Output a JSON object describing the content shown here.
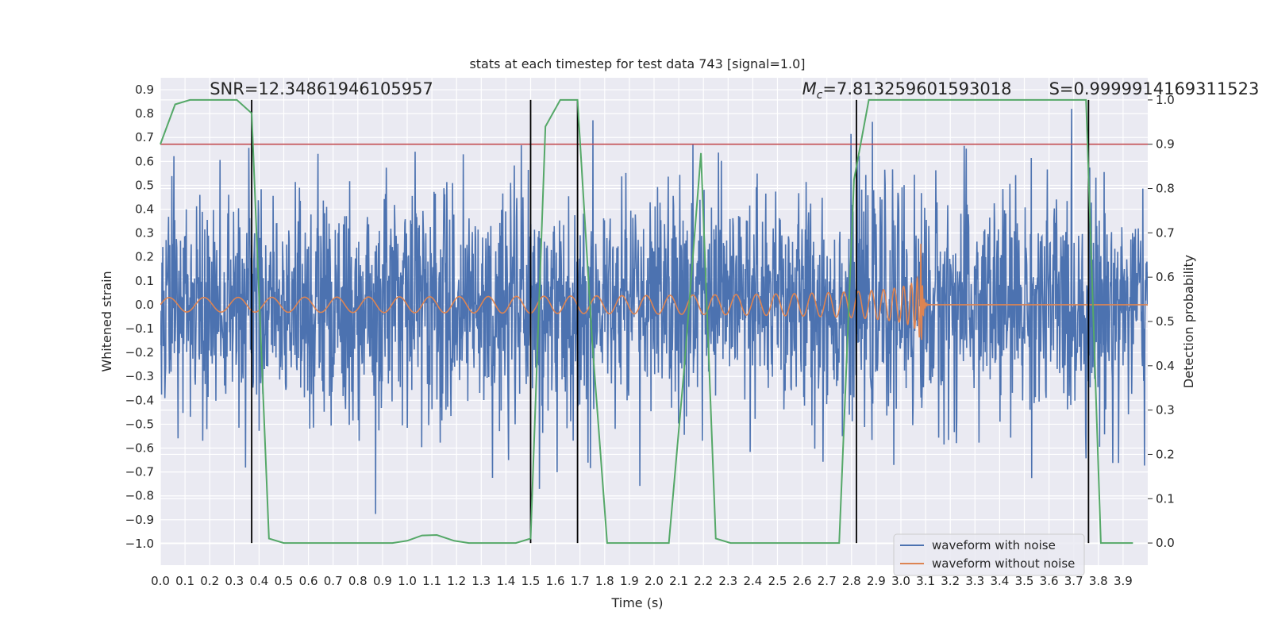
{
  "chart_data": {
    "type": "line",
    "title": "stats at each timestep for test data 743 [signal=1.0]",
    "xlabel": "Time (s)",
    "ylabel": "Whitened strain",
    "y2label": "Detection probability",
    "xlim": [
      0.0,
      4.0
    ],
    "ylim": [
      -1.09,
      0.95
    ],
    "y2lim": [
      -0.05,
      1.05
    ],
    "grid": true,
    "xticks": [
      "0.0",
      "0.1",
      "0.2",
      "0.3",
      "0.4",
      "0.5",
      "0.6",
      "0.7",
      "0.8",
      "0.9",
      "1.0",
      "1.1",
      "1.2",
      "1.3",
      "1.4",
      "1.5",
      "1.6",
      "1.7",
      "1.8",
      "1.9",
      "2.0",
      "2.1",
      "2.2",
      "2.3",
      "2.4",
      "2.5",
      "2.6",
      "2.7",
      "2.8",
      "2.9",
      "3.0",
      "3.1",
      "3.2",
      "3.3",
      "3.4",
      "3.5",
      "3.6",
      "3.7",
      "3.8",
      "3.9"
    ],
    "yticks": [
      "0.9",
      "0.8",
      "0.7",
      "0.6",
      "0.5",
      "0.4",
      "0.3",
      "0.2",
      "0.1",
      "0.0",
      "−0.1",
      "−0.2",
      "−0.3",
      "−0.4",
      "−0.5",
      "−0.6",
      "−0.7",
      "−0.8",
      "−0.9",
      "−1.0"
    ],
    "y2ticks": [
      "1.0",
      "0.9",
      "0.8",
      "0.7",
      "0.6",
      "0.5",
      "0.4",
      "0.3",
      "0.2",
      "0.1",
      "0.0"
    ],
    "annotations": {
      "snr": "SNR=12.34861946105957",
      "mc_symbol": "M",
      "mc_sub": "c",
      "mc_value": "=7.813259601593018",
      "s": "S=0.9999914169311523"
    },
    "legend": {
      "position": "lower-right",
      "entries": [
        "waveform with noise",
        "waveform without noise"
      ]
    },
    "series": [
      {
        "name": "waveform with noise",
        "color": "#4c72b0",
        "note": "Gaussian whitened noise, sampled densely from 0.0 to 4.0 s; typical amplitude ±0.4, peaks near ±0.8",
        "x_start": 0.0,
        "x_end": 4.0,
        "n_samples": 2400,
        "amplitude_sigma": 0.24,
        "seed": 743
      },
      {
        "name": "waveform without noise",
        "color": "#dd8452",
        "note": "Chirp signal: amplitude ~0.03 rising to ~0.28 at merger near 3.08 s, then ringdown to 0",
        "x_start": 0.0,
        "x_merge": 3.08,
        "amp_start": 0.03,
        "amp_merge": 0.28,
        "f_start": 7,
        "f_merge": 55
      },
      {
        "name": "detection probability",
        "color": "#55a868",
        "axis": "right",
        "x": [
          0.0,
          0.06,
          0.12,
          0.18,
          0.25,
          0.31,
          0.37,
          0.44,
          0.5,
          0.56,
          0.62,
          0.69,
          0.75,
          0.81,
          0.87,
          0.94,
          1.0,
          1.06,
          1.12,
          1.19,
          1.25,
          1.31,
          1.37,
          1.44,
          1.5,
          1.56,
          1.62,
          1.69,
          1.75,
          1.81,
          1.87,
          1.94,
          2.0,
          2.06,
          2.12,
          2.19,
          2.25,
          2.31,
          2.37,
          2.44,
          2.5,
          2.56,
          2.62,
          2.69,
          2.75,
          2.81,
          2.87,
          2.94,
          3.0,
          3.06,
          3.12,
          3.19,
          3.25,
          3.31,
          3.37,
          3.44,
          3.5,
          3.56,
          3.62,
          3.69,
          3.75,
          3.81,
          3.87,
          3.94
        ],
        "y": [
          0.9,
          0.99,
          1.0,
          1.0,
          1.0,
          1.0,
          0.97,
          0.01,
          0.0,
          0.0,
          0.0,
          0.0,
          0.0,
          0.0,
          0.0,
          0.0,
          0.005,
          0.017,
          0.018,
          0.005,
          0.0,
          0.0,
          0.0,
          0.0,
          0.01,
          0.94,
          1.0,
          1.0,
          0.45,
          0.0,
          0.0,
          0.0,
          0.0,
          0.0,
          0.38,
          0.88,
          0.01,
          0.0,
          0.0,
          0.0,
          0.0,
          0.0,
          0.0,
          0.0,
          0.0,
          0.82,
          1.0,
          1.0,
          1.0,
          1.0,
          1.0,
          1.0,
          1.0,
          1.0,
          1.0,
          1.0,
          1.0,
          1.0,
          1.0,
          1.0,
          1.0,
          0.0,
          0.0,
          0.0
        ]
      },
      {
        "name": "threshold",
        "color": "#c44e52",
        "axis": "right",
        "value": 0.9
      }
    ],
    "vlines": [
      0.37,
      1.5,
      1.69,
      2.82,
      3.76
    ],
    "vline_color": "#000000"
  }
}
